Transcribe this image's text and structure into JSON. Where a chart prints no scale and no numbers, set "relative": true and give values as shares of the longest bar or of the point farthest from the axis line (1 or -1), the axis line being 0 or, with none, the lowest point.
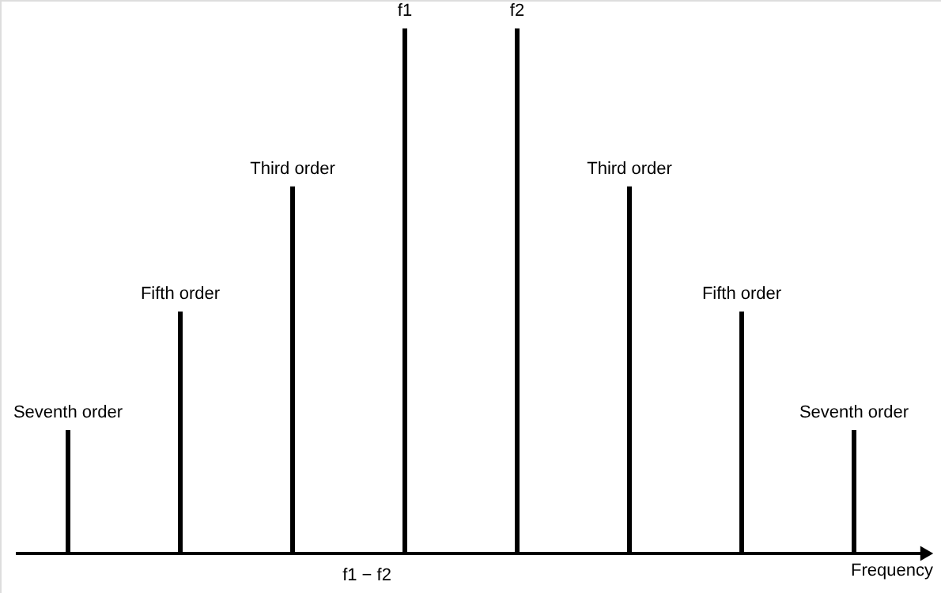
{
  "chart_data": {
    "type": "bar",
    "relative": true,
    "xlabel": "Frequency",
    "color": "#000000",
    "categories": [
      "Seventh order",
      "Fifth order",
      "Third order",
      "f1",
      "f2",
      "Third order",
      "Fifth order",
      "Seventh order"
    ],
    "values": [
      0.235,
      0.461,
      0.699,
      1,
      1,
      0.699,
      0.461,
      0.235
    ],
    "annotations": [
      "f1 − f2"
    ]
  }
}
